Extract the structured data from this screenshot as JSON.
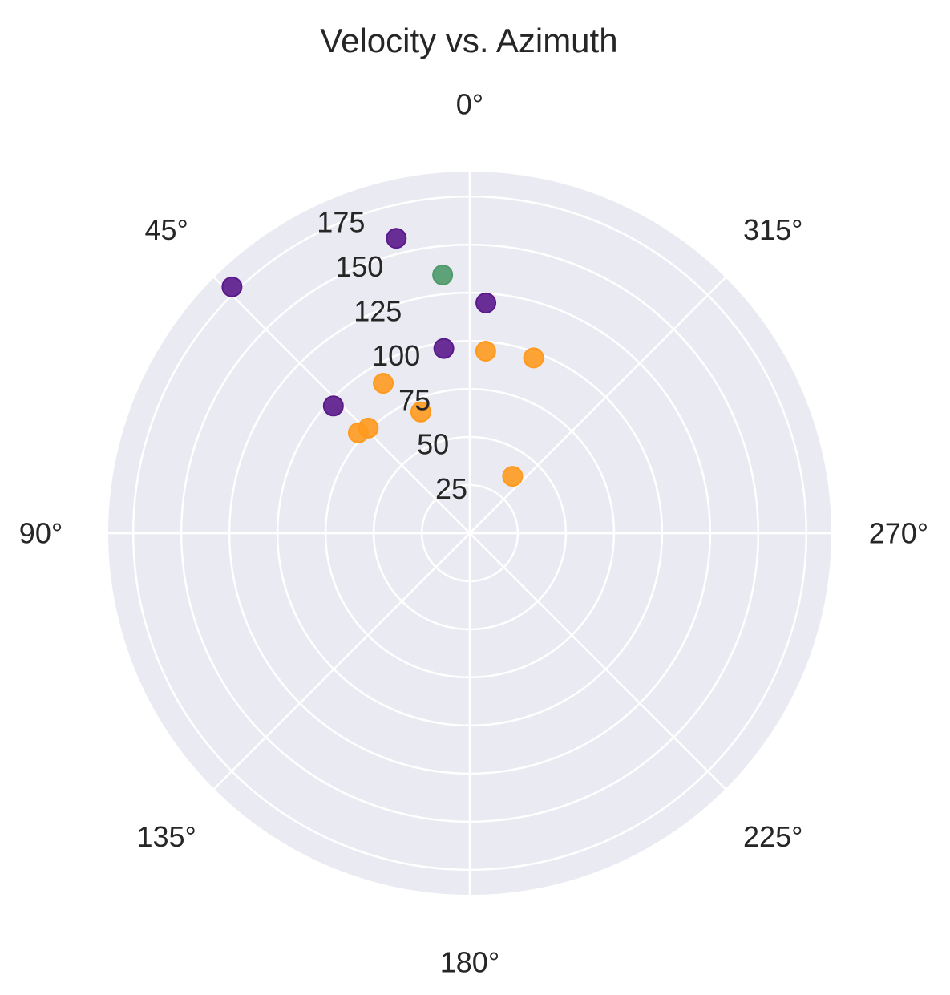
{
  "chart_data": {
    "type": "scatter",
    "subtype": "polar",
    "title": "Velocity vs. Azimuth",
    "theta_direction": "counterclockwise",
    "theta_zero": "top",
    "theta_ticks": [
      0,
      45,
      90,
      135,
      180,
      225,
      270,
      315
    ],
    "theta_tick_labels": [
      "0°",
      "45°",
      "90°",
      "135°",
      "180°",
      "225°",
      "270°",
      "315°"
    ],
    "r_ticks": [
      25,
      50,
      75,
      100,
      125,
      150,
      175
    ],
    "r_tick_labels": [
      "25",
      "50",
      "75",
      "100",
      "125",
      "150",
      "175"
    ],
    "rlim": [
      0,
      188
    ],
    "grid": true,
    "background_color": "#eaeaf2",
    "grid_color": "#ffffff",
    "series": [
      {
        "color": "#5b1a8b",
        "points": [
          {
            "theta": 14,
            "r": 158
          },
          {
            "theta": 44,
            "r": 178
          },
          {
            "theta": 356,
            "r": 120
          },
          {
            "theta": 8,
            "r": 97
          },
          {
            "theta": 47,
            "r": 97
          }
        ]
      },
      {
        "color": "#4e9a6a",
        "points": [
          {
            "theta": 6,
            "r": 135
          }
        ]
      },
      {
        "color": "#ff9a1f",
        "points": [
          {
            "theta": 355,
            "r": 95
          },
          {
            "theta": 340,
            "r": 97
          },
          {
            "theta": 30,
            "r": 90
          },
          {
            "theta": 44,
            "r": 76
          },
          {
            "theta": 48,
            "r": 78
          },
          {
            "theta": 22,
            "r": 68
          },
          {
            "theta": 323,
            "r": 37
          }
        ]
      }
    ]
  }
}
